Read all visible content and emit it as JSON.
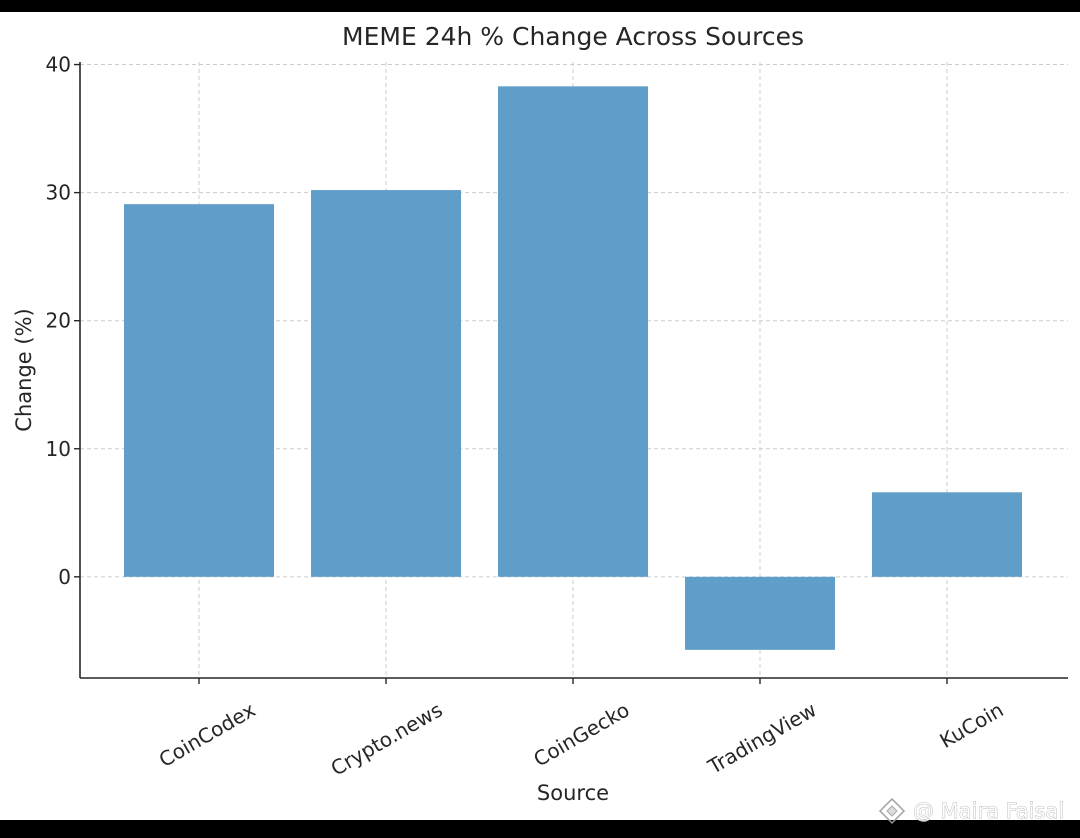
{
  "chart_data": {
    "type": "bar",
    "title": "MEME 24h % Change Across Sources",
    "xlabel": "Source",
    "ylabel": "Change (%)",
    "categories": [
      "CoinCodex",
      "Crypto.news",
      "CoinGecko",
      "TradingView",
      "KuCoin"
    ],
    "values": [
      29.1,
      30.2,
      38.3,
      -5.7,
      6.6
    ],
    "ylim": [
      -7.9,
      40.2
    ],
    "yticks": [
      0,
      10,
      20,
      30,
      40
    ],
    "grid": true,
    "bar_color": "#5f9ec9",
    "tick_label_rotation": -30
  },
  "watermark": {
    "text": "@ Maira Faisal",
    "icon": "binance-diamond-icon"
  }
}
